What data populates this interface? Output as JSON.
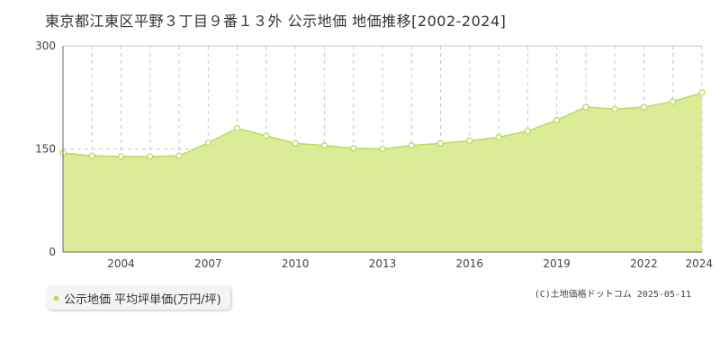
{
  "title": "東京都江東区平野３丁目９番１３外 公示地価 地価推移[2002-2024]",
  "legend": {
    "label": "公示地価 平均坪単価(万円/坪)"
  },
  "copyright": "(C)土地価格ドットコム 2025-05-11",
  "colors": {
    "fill": "#dcec96",
    "line": "#b9dc5a",
    "grid": "#c8c8c8",
    "marker": "#b9dc5a"
  },
  "chart_data": {
    "type": "area",
    "x": [
      2002,
      2003,
      2004,
      2005,
      2006,
      2007,
      2008,
      2009,
      2010,
      2011,
      2012,
      2013,
      2014,
      2015,
      2016,
      2017,
      2018,
      2019,
      2020,
      2021,
      2022,
      2023,
      2024
    ],
    "series": [
      {
        "values": [
          144,
          140,
          139,
          139,
          140,
          159,
          180,
          169,
          158,
          155,
          151,
          150,
          155,
          158,
          162,
          167,
          176,
          192,
          211,
          208,
          211,
          219,
          232
        ]
      }
    ],
    "xticks": [
      "2004",
      "2007",
      "2010",
      "2013",
      "2016",
      "2019",
      "2022",
      "2024"
    ],
    "yticks": [
      "0",
      "150",
      "300"
    ],
    "xlim": [
      2002,
      2024
    ],
    "ylim": [
      0,
      300
    ],
    "grid": true
  }
}
